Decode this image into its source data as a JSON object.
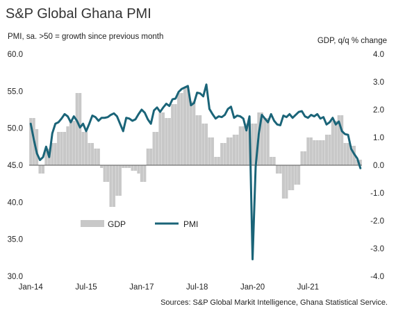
{
  "chart_data": {
    "type": "bar+line",
    "title": "S&P Global Ghana PMI",
    "left_axis_label": "PMI, sa. >50 = growth  since previous  month",
    "right_axis_label": "GDP, q/q % change",
    "source": "Sources: S&P Global Markit Intelligence, Ghana Statistical Service.",
    "y_left": {
      "min": 30,
      "max": 60,
      "ticks": [
        "60.0",
        "55.0",
        "50.0",
        "45.0",
        "40.0",
        "35.0",
        "30.0"
      ]
    },
    "y_right": {
      "min": -4,
      "max": 4,
      "ticks": [
        "4.0",
        "3.0",
        "2.0",
        "1.0",
        "0.0",
        "-1.0",
        "-2.0",
        "-3.0",
        "-4.0"
      ]
    },
    "x_ticks": [
      "Jan-14",
      "Jul-15",
      "Jan-17",
      "Jul-18",
      "Jan-20",
      "Jul-21"
    ],
    "x_tick_indices": [
      0,
      18,
      36,
      54,
      72,
      90
    ],
    "x_count": 108,
    "gdp_color": "#c8c8c8",
    "pmi_color": "#1a6478",
    "legend": [
      {
        "name": "GDP"
      },
      {
        "name": "PMI"
      }
    ],
    "series": [
      {
        "name": "GDP",
        "kind": "bar",
        "axis": "right",
        "values": [
          1.7,
          1.7,
          1.3,
          -0.3,
          -0.3,
          0.6,
          0.6,
          0.8,
          0.8,
          1.2,
          1.2,
          1.2,
          1.4,
          1.6,
          1.6,
          2.6,
          2.6,
          1.2,
          1.2,
          0.8,
          0.8,
          0.6,
          0.6,
          -0.1,
          -0.6,
          -0.6,
          -1.5,
          -1.5,
          -1.1,
          -1.1,
          -0.1,
          -0.1,
          -0.1,
          -0.2,
          -0.2,
          -0.3,
          -0.6,
          -0.6,
          0.6,
          0.6,
          1.2,
          1.2,
          1.9,
          1.9,
          1.7,
          1.7,
          2.2,
          2.2,
          2.6,
          2.6,
          2.8,
          2.8,
          2.3,
          2.3,
          1.8,
          1.8,
          1.5,
          1.5,
          1.0,
          1.0,
          0.3,
          0.3,
          0.8,
          0.8,
          1.0,
          1.0,
          1.1,
          1.1,
          1.4,
          1.4,
          1.5,
          1.5,
          1.5,
          1.5,
          1.9,
          1.9,
          1.7,
          1.7,
          0.3,
          0.3,
          -0.3,
          -0.3,
          -1.2,
          -1.2,
          -0.9,
          -0.9,
          -0.7,
          -0.7,
          0.5,
          0.5,
          1.0,
          1.0,
          0.9,
          0.9,
          0.9,
          0.9,
          1.1,
          1.1,
          1.6,
          1.6,
          1.8,
          1.8,
          0.8,
          0.8,
          0.7,
          0.7,
          0.2,
          0.2
        ]
      },
      {
        "name": "PMI",
        "kind": "line",
        "axis": "left",
        "values": [
          50.6,
          48.5,
          46.6,
          45.7,
          46.1,
          47.5,
          46.1,
          49.3,
          50.6,
          50.8,
          51.3,
          51.9,
          51.6,
          50.8,
          51.6,
          51.0,
          50.1,
          50.6,
          49.6,
          50.6,
          51.7,
          51.5,
          51.0,
          51.4,
          51.4,
          51.5,
          51.8,
          52.0,
          51.6,
          50.6,
          49.6,
          51.4,
          51.3,
          51.0,
          51.2,
          51.9,
          52.5,
          52.1,
          51.2,
          50.6,
          52.4,
          52.8,
          52.2,
          52.8,
          53.3,
          53.0,
          53.9,
          54.0,
          54.9,
          55.3,
          55.5,
          55.7,
          53.1,
          53.4,
          54.8,
          54.7,
          54.3,
          55.9,
          52.6,
          51.9,
          51.3,
          51.6,
          51.5,
          51.8,
          52.6,
          52.9,
          51.4,
          51.7,
          51.6,
          51.3,
          49.7,
          51.6,
          32.3,
          44.8,
          49.2,
          51.8,
          51.3,
          50.8,
          51.9,
          51.0,
          50.5,
          50.4,
          51.7,
          51.5,
          51.9,
          51.4,
          51.8,
          52.2,
          52.3,
          51.6,
          51.4,
          51.8,
          51.6,
          51.9,
          51.3,
          51.5,
          50.5,
          50.8,
          51.4,
          50.5,
          50.9,
          49.6,
          49.2,
          49.1,
          47.2,
          46.5,
          45.9,
          44.6
        ]
      }
    ]
  }
}
